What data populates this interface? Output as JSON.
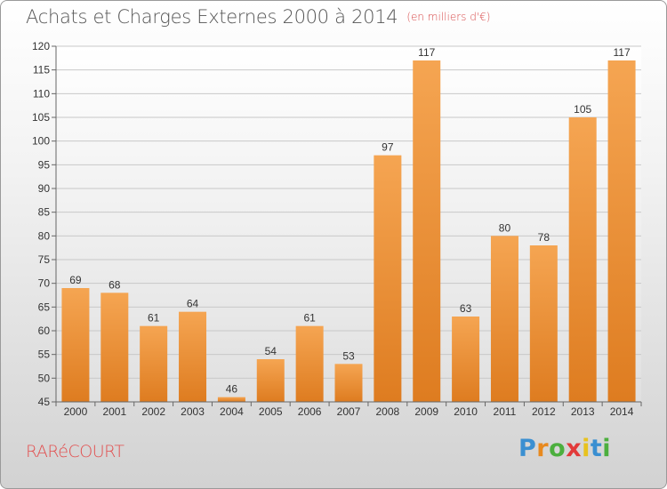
{
  "header": {
    "title": "Achats et Charges Externes 2000 à 2014",
    "unit": "(en milliers d'€)"
  },
  "footer": {
    "commune": "RARéCOURT",
    "logo_letters": [
      "P",
      "r",
      "o",
      "x",
      "i",
      "t",
      "i"
    ],
    "logo_colors": [
      "#3a8fd1",
      "#e8891e",
      "#4caf3e",
      "#e23a3a",
      "#e8c21e",
      "#3a8fd1",
      "#4caf3e"
    ]
  },
  "colors": {
    "bar_light": "#f5a552",
    "bar_dark": "#de7c20",
    "grid": "#c8c8c8",
    "axis": "#666666"
  },
  "chart_data": {
    "type": "bar",
    "title": "Achats et Charges Externes 2000 à 2014",
    "subtitle": "(en milliers d'€)",
    "categories": [
      "2000",
      "2001",
      "2002",
      "2003",
      "2004",
      "2005",
      "2006",
      "2007",
      "2008",
      "2009",
      "2010",
      "2011",
      "2012",
      "2013",
      "2014"
    ],
    "values": [
      69,
      68,
      61,
      64,
      46,
      54,
      61,
      53,
      97,
      117,
      63,
      80,
      78,
      105,
      117
    ],
    "ylim": [
      45,
      120
    ],
    "yticks": [
      45,
      50,
      55,
      60,
      65,
      70,
      75,
      80,
      85,
      90,
      95,
      100,
      105,
      110,
      115,
      120
    ],
    "grid": true,
    "xlabel": "",
    "ylabel": ""
  }
}
